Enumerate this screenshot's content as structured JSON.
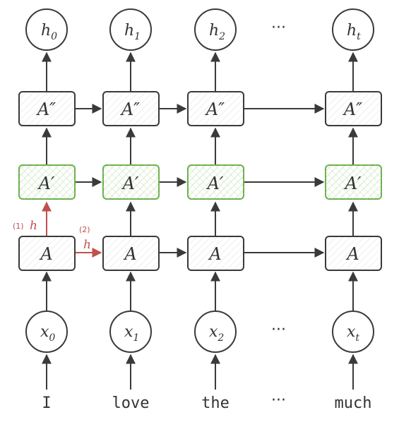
{
  "output_nodes": [
    {
      "base": "h",
      "sub": "0"
    },
    {
      "base": "h",
      "sub": "1"
    },
    {
      "base": "h",
      "sub": "2"
    },
    {
      "base": "h",
      "sub": "t"
    }
  ],
  "layer_top_label": "A″",
  "layer_mid_label": "A′",
  "layer_bottom_label": "A",
  "input_nodes": [
    {
      "base": "x",
      "sub": "0"
    },
    {
      "base": "x",
      "sub": "1"
    },
    {
      "base": "x",
      "sub": "2"
    },
    {
      "base": "x",
      "sub": "t"
    }
  ],
  "words": [
    "I",
    "love",
    "the",
    "much"
  ],
  "ellipsis": "···",
  "annotations": {
    "vertical_step": "(1)",
    "horizontal_step": "(2)",
    "hidden_symbol": "h"
  },
  "colors": {
    "stroke": "#3a3a3a",
    "mid_layer_stroke": "#6ab04c",
    "mid_layer_hatch": "#b9d9a5",
    "box_hatch": "#dcdcdc",
    "highlight_arrow": "#c0504d"
  }
}
